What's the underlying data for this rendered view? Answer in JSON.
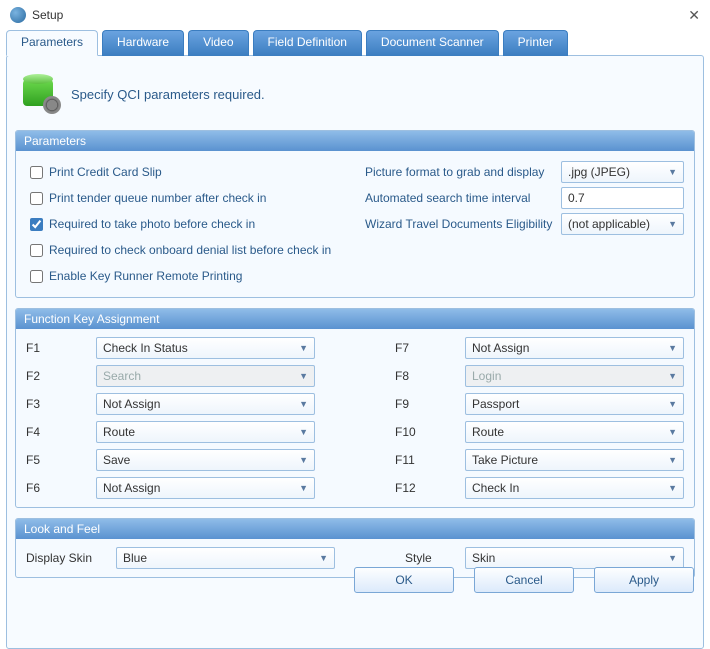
{
  "window": {
    "title": "Setup"
  },
  "tabs": [
    "Parameters",
    "Hardware",
    "Video",
    "Field Definition",
    "Document Scanner",
    "Printer"
  ],
  "active_tab": 0,
  "hero": {
    "text": "Specify QCI parameters required."
  },
  "parameters": {
    "header": "Parameters",
    "checks": [
      {
        "label": "Print Credit Card Slip",
        "checked": false
      },
      {
        "label": "Print tender queue number after check in",
        "checked": false
      },
      {
        "label": "Required to take photo before check in",
        "checked": true
      },
      {
        "label": "Required to check onboard denial list before check in",
        "checked": false
      },
      {
        "label": "Enable Key Runner Remote Printing",
        "checked": false
      }
    ],
    "kv": [
      {
        "label": "Picture format to grab and display",
        "value": ".jpg (JPEG)",
        "type": "combo"
      },
      {
        "label": "Automated search time interval",
        "value": "0.7",
        "type": "text"
      },
      {
        "label": "Wizard Travel Documents Eligibility",
        "value": "(not applicable)",
        "type": "combo"
      }
    ]
  },
  "fkeys": {
    "header": "Function Key Assignment",
    "rows": [
      {
        "left_label": "F1",
        "left_value": "Check In Status",
        "left_disabled": false,
        "right_label": "F7",
        "right_value": "Not Assign",
        "right_disabled": false
      },
      {
        "left_label": "F2",
        "left_value": "Search",
        "left_disabled": true,
        "right_label": "F8",
        "right_value": "Login",
        "right_disabled": true
      },
      {
        "left_label": "F3",
        "left_value": "Not Assign",
        "left_disabled": false,
        "right_label": "F9",
        "right_value": "Passport",
        "right_disabled": false
      },
      {
        "left_label": "F4",
        "left_value": "Route",
        "left_disabled": false,
        "right_label": "F10",
        "right_value": "Route",
        "right_disabled": false
      },
      {
        "left_label": "F5",
        "left_value": "Save",
        "left_disabled": false,
        "right_label": "F11",
        "right_value": "Take Picture",
        "right_disabled": false
      },
      {
        "left_label": "F6",
        "left_value": "Not Assign",
        "left_disabled": false,
        "right_label": "F12",
        "right_value": "Check In",
        "right_disabled": false
      }
    ]
  },
  "look": {
    "header": "Look and Feel",
    "skin_label": "Display Skin",
    "skin_value": "Blue",
    "style_label": "Style",
    "style_value": "Skin"
  },
  "buttons": {
    "ok": "OK",
    "cancel": "Cancel",
    "apply": "Apply"
  },
  "colors": {
    "accent": "#3b7dc0",
    "panel_bg": "#f7fbff",
    "border": "#9dbfe0",
    "header_grad_top": "#8fbce8",
    "header_grad_bot": "#5a92d0"
  }
}
